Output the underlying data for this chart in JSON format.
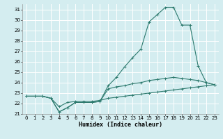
{
  "xlabel": "Humidex (Indice chaleur)",
  "bg_color": "#d4edf0",
  "grid_color": "#ffffff",
  "line_color": "#2d7a6e",
  "xlim": [
    -0.5,
    23.5
  ],
  "ylim": [
    21,
    31.5
  ],
  "xticks": [
    0,
    1,
    2,
    3,
    4,
    5,
    6,
    7,
    8,
    9,
    10,
    11,
    12,
    13,
    14,
    15,
    16,
    17,
    18,
    19,
    20,
    21,
    22,
    23
  ],
  "yticks": [
    21,
    22,
    23,
    24,
    25,
    26,
    27,
    28,
    29,
    30,
    31
  ],
  "series1_y": [
    22.7,
    22.7,
    22.7,
    22.5,
    21.7,
    22.1,
    22.2,
    22.2,
    22.2,
    22.3,
    22.5,
    22.6,
    22.7,
    22.8,
    22.9,
    23.0,
    23.1,
    23.2,
    23.3,
    23.4,
    23.5,
    23.6,
    23.7,
    23.8
  ],
  "series2_y": [
    22.7,
    22.7,
    22.7,
    22.5,
    21.2,
    21.6,
    22.1,
    22.1,
    22.1,
    22.2,
    23.4,
    23.6,
    23.7,
    23.9,
    24.0,
    24.2,
    24.3,
    24.4,
    24.5,
    24.4,
    24.3,
    24.2,
    24.0,
    23.8
  ],
  "series3_y": [
    22.7,
    22.7,
    22.7,
    22.5,
    21.2,
    21.6,
    22.1,
    22.1,
    22.1,
    22.2,
    23.7,
    24.5,
    25.5,
    26.4,
    27.2,
    29.8,
    30.5,
    31.2,
    31.2,
    29.5,
    29.5,
    25.6,
    24.0,
    23.8
  ]
}
